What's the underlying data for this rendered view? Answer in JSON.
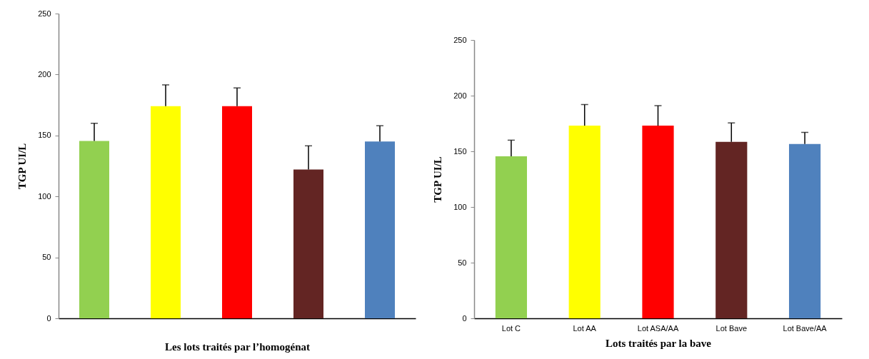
{
  "chart_data": [
    {
      "type": "bar",
      "xlabel": "Les lots traités par l’homogénat",
      "ylabel": "TGP UI/L",
      "categories": [
        null,
        null,
        null,
        null,
        null
      ],
      "values": [
        145.5,
        174,
        174,
        122,
        145
      ],
      "colors": [
        "#92d050",
        "#ffff00",
        "#ff0000",
        "#632523",
        "#4f81bd"
      ],
      "errors": [
        [
          145.5,
          160
        ],
        [
          174,
          191.5
        ],
        [
          174,
          189
        ],
        [
          122,
          141.5
        ],
        [
          145,
          158
        ]
      ],
      "ylim": [
        0,
        250
      ],
      "yticks": [
        0,
        50,
        100,
        150,
        200,
        250
      ],
      "grid": false,
      "tick_labels": "y"
    },
    {
      "type": "bar",
      "xlabel": "Lots traités par la bave",
      "ylabel": "TGP UI/L",
      "categories": [
        "Lot C",
        "Lot AA",
        "Lot ASA/AA",
        "Lot Bave",
        "Lot Bave/AA"
      ],
      "values": [
        145.5,
        173,
        173,
        158.5,
        156.5
      ],
      "colors": [
        "#92d050",
        "#ffff00",
        "#ff0000",
        "#632523",
        "#4f81bd"
      ],
      "errors": [
        [
          145.5,
          160
        ],
        [
          173,
          192
        ],
        [
          173,
          191
        ],
        [
          158.5,
          175.5
        ],
        [
          156.5,
          167
        ]
      ],
      "ylim": [
        0,
        250
      ],
      "yticks": [
        0,
        50,
        100,
        150,
        200,
        250
      ],
      "grid": false
    }
  ]
}
